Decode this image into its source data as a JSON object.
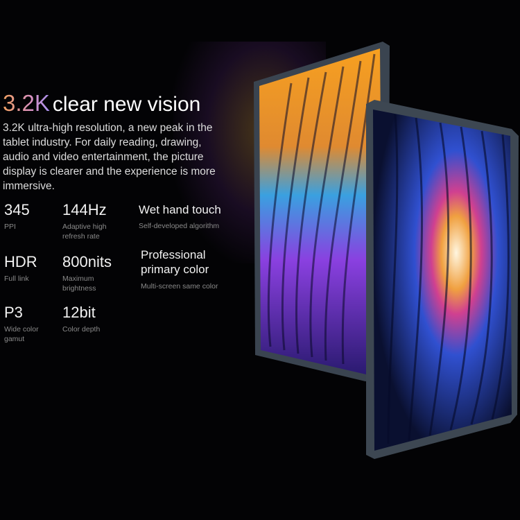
{
  "headline": {
    "accent": "3.2K",
    "rest": "clear new vision"
  },
  "description": "3.2K ultra-high resolution, a new peak in the tablet industry. For daily reading, drawing, audio and video entertainment, the picture display is clearer and the experience is more immersive.",
  "specs": [
    {
      "value": "345",
      "label": "PPI"
    },
    {
      "value": "144Hz",
      "label": "Adaptive high refresh rate"
    },
    {
      "value": "Wet hand touch",
      "label": "Self-developed algorithm"
    },
    {
      "value": "HDR",
      "label": "Full link"
    },
    {
      "value": "800nits",
      "label": "Maximum brightness"
    },
    {
      "value": "Professional primary color",
      "label": "Multi-screen same color"
    },
    {
      "value": "P3",
      "label": "Wide color gamut"
    },
    {
      "value": "12bit",
      "label": "Color depth"
    }
  ],
  "colors": {
    "background": "#030305",
    "accent_start": "#f0a060",
    "accent_end": "#a890f0",
    "frame": "#3a4450"
  }
}
